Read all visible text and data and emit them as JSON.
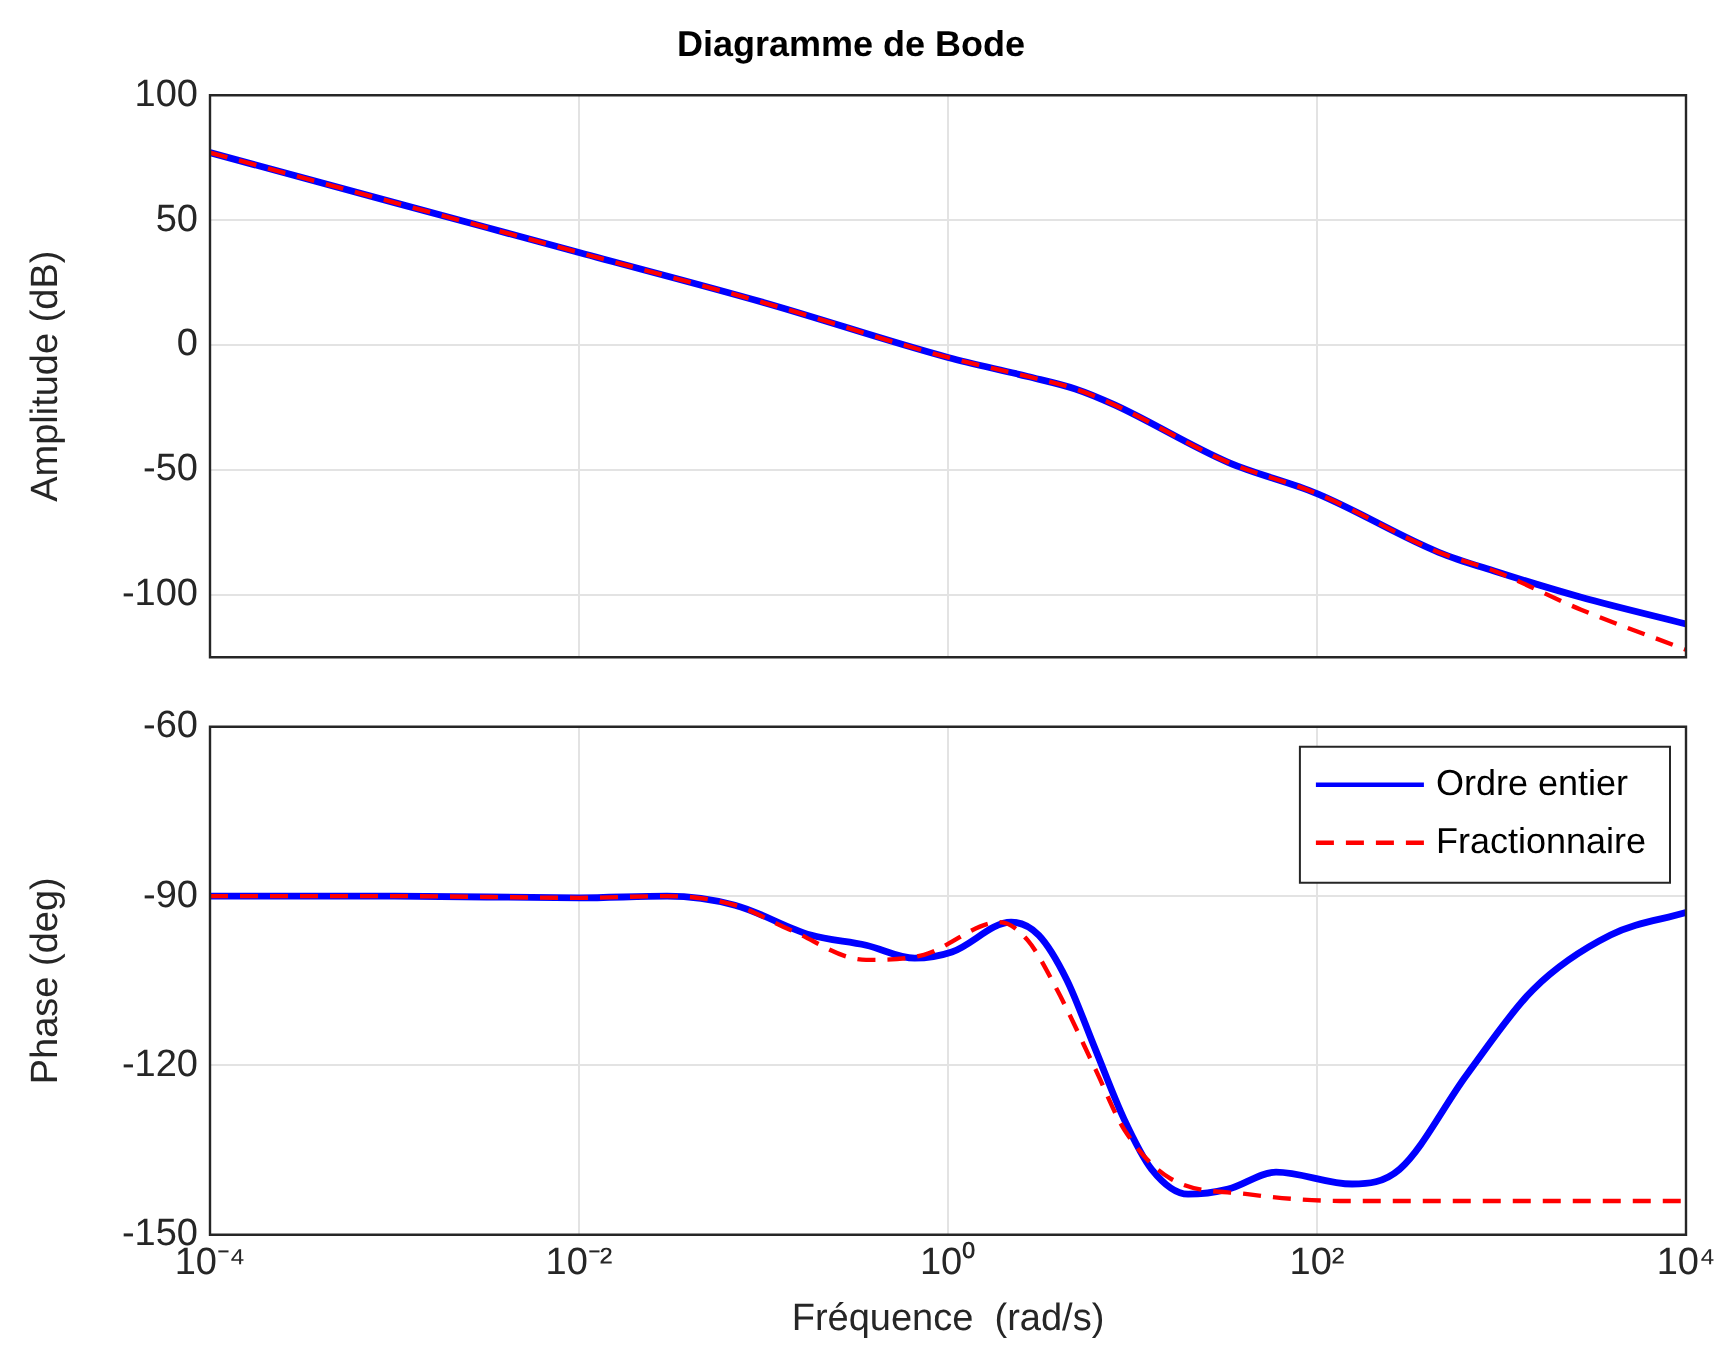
{
  "chart_data": [
    {
      "type": "line",
      "title": "Diagramme de Bode",
      "ylabel": "Amplitude (dB)",
      "log": "x",
      "grid": true,
      "tick_labels": "y",
      "xlim": [
        0.0001,
        10000
      ],
      "xticks": [
        {
          "value": 0.0001,
          "label": null
        },
        {
          "value": 0.01,
          "label": null
        },
        {
          "value": 1,
          "label": null
        },
        {
          "value": 100,
          "label": null
        },
        {
          "value": 10000,
          "label": null
        }
      ],
      "ylim": [
        -125,
        100
      ],
      "yticks": [
        -100,
        -50,
        0,
        50,
        100
      ],
      "series": [
        {
          "color": "#0000ff",
          "line_style": "solid",
          "x": [
            0.0001,
            0.001,
            0.01,
            0.1,
            1,
            2.7,
            4.9,
            8,
            33,
            100,
            457,
            930,
            2700,
            10000
          ],
          "values": [
            77,
            57,
            37,
            17,
            -5,
            -12.6,
            -17.6,
            -24,
            -47,
            -59.5,
            -83,
            -90.7,
            -101,
            -111.7
          ]
        },
        {
          "color": "#ff0000",
          "line_style": "dashed",
          "x": [
            0.0001,
            0.001,
            0.01,
            0.1,
            1,
            2.7,
            4.9,
            8,
            33,
            100,
            457,
            930,
            2700,
            10000
          ],
          "values": [
            77,
            57,
            37,
            17,
            -5,
            -12.6,
            -17.6,
            -24,
            -47,
            -59.5,
            -83,
            -90.7,
            -106,
            -122
          ]
        }
      ]
    },
    {
      "type": "line",
      "xlabel": "Fréquence  (rad/s)",
      "ylabel": "Phase (deg)",
      "log": "x",
      "grid": true,
      "legend": "top right",
      "xlim": [
        0.0001,
        10000
      ],
      "xticks": [
        {
          "value": 0.0001,
          "label": "10⁻⁴"
        },
        {
          "value": 0.01,
          "label": "10⁻²"
        },
        {
          "value": 1,
          "label": "10⁰"
        },
        {
          "value": 100,
          "label": "10²"
        },
        {
          "value": 10000,
          "label": "10⁴"
        }
      ],
      "ylim": [
        -150,
        -60
      ],
      "yticks": [
        -60,
        -90,
        -120,
        -150
      ],
      "series": [
        {
          "name": "Ordre entier",
          "color": "#0000ff",
          "line_style": "solid",
          "x": [
            0.0001,
            0.001,
            0.01,
            0.03,
            0.07,
            0.18,
            0.36,
            0.66,
            1.05,
            2.2,
            3.1,
            4.4,
            6.3,
            9,
            12.7,
            20,
            33,
            60,
            155,
            280,
            650,
            1480,
            3900,
            10000
          ],
          "values": [
            -90,
            -90,
            -90.3,
            -90,
            -91.6,
            -96.9,
            -98.7,
            -101,
            -99.9,
            -94.6,
            -96.9,
            -104.8,
            -117.2,
            -129.5,
            -138.4,
            -142.8,
            -141.9,
            -138.9,
            -141,
            -138.4,
            -121.6,
            -106.6,
            -96.9,
            -92.9
          ]
        },
        {
          "name": "Fractionnaire",
          "color": "#ff0000",
          "line_style": "dashed",
          "x": [
            0.0001,
            0.001,
            0.01,
            0.03,
            0.07,
            0.14,
            0.36,
            0.74,
            1.9,
            2.7,
            3.9,
            6.3,
            9,
            16,
            42,
            137,
            10000
          ],
          "values": [
            -90,
            -90,
            -90.3,
            -90,
            -91.6,
            -96,
            -101.3,
            -100.4,
            -94.6,
            -97.8,
            -106.6,
            -120.7,
            -131.3,
            -140,
            -142.8,
            -144,
            -144
          ]
        }
      ]
    }
  ]
}
